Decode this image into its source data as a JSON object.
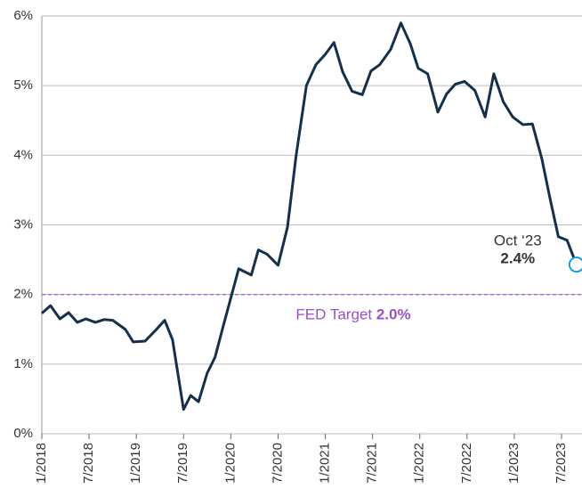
{
  "chart_data": {
    "type": "line",
    "x": [
      0,
      1.1,
      2.3,
      3.4,
      4.5,
      5.6,
      6.8,
      7.9,
      9.0,
      10.6,
      11.6,
      13.1,
      14.4,
      15.6,
      16.6,
      18.0,
      18.9,
      19.9,
      21.0,
      22.0,
      23.0,
      25.0,
      26.6,
      27.5,
      28.6,
      30.0,
      31.2,
      32.3,
      33.6,
      34.8,
      36.0,
      37.1,
      38.2,
      39.4,
      40.7,
      41.8,
      42.9,
      44.3,
      45.6,
      46.8,
      47.8,
      49.0,
      50.3,
      51.4,
      52.5,
      53.7,
      55.0,
      56.3,
      57.4,
      58.6,
      59.8,
      61.1,
      62.3,
      63.5,
      64.5,
      65.6,
      66.7,
      67.9
    ],
    "values": [
      1.73,
      1.84,
      1.65,
      1.74,
      1.6,
      1.65,
      1.6,
      1.64,
      1.63,
      1.5,
      1.32,
      1.33,
      1.48,
      1.63,
      1.35,
      0.35,
      0.55,
      0.46,
      0.87,
      1.1,
      1.53,
      2.37,
      2.28,
      2.64,
      2.58,
      2.42,
      2.97,
      4.0,
      5.0,
      5.3,
      5.45,
      5.62,
      5.2,
      4.92,
      4.87,
      5.21,
      5.3,
      5.52,
      5.9,
      5.6,
      5.25,
      5.17,
      4.62,
      4.88,
      5.02,
      5.06,
      4.93,
      4.55,
      5.17,
      4.77,
      4.55,
      4.44,
      4.45,
      3.95,
      3.4,
      2.83,
      2.78,
      2.43
    ],
    "color": "#14304a",
    "xlim": [
      0,
      68.6
    ],
    "xticks": [
      {
        "value": 0,
        "label": "1/2018"
      },
      {
        "value": 6,
        "label": "7/2018"
      },
      {
        "value": 12,
        "label": "1/2019"
      },
      {
        "value": 18,
        "label": "7/2019"
      },
      {
        "value": 24,
        "label": "1/2020"
      },
      {
        "value": 30,
        "label": "7/2020"
      },
      {
        "value": 36,
        "label": "1/2021"
      },
      {
        "value": 42,
        "label": "7/2021"
      },
      {
        "value": 48,
        "label": "1/2022"
      },
      {
        "value": 54,
        "label": "7/2022"
      },
      {
        "value": 60,
        "label": "1/2023"
      },
      {
        "value": 66,
        "label": "7/2023"
      }
    ],
    "ylim": [
      0,
      6
    ],
    "yticks": [
      {
        "value": 0,
        "label": "0%"
      },
      {
        "value": 1,
        "label": "1%"
      },
      {
        "value": 2,
        "label": "2%"
      },
      {
        "value": 3,
        "label": "3%"
      },
      {
        "value": 4,
        "label": "4%"
      },
      {
        "value": 5,
        "label": "5%"
      },
      {
        "value": 6,
        "label": "6%"
      }
    ],
    "grid": true,
    "target": {
      "label": "FED Target ",
      "value": 2.0,
      "value_label": "2.0%",
      "color": "#9b4fc9"
    },
    "last_point": {
      "label": "Oct ‘23",
      "value_label": "2.4%",
      "color": "#1a9be0"
    }
  }
}
